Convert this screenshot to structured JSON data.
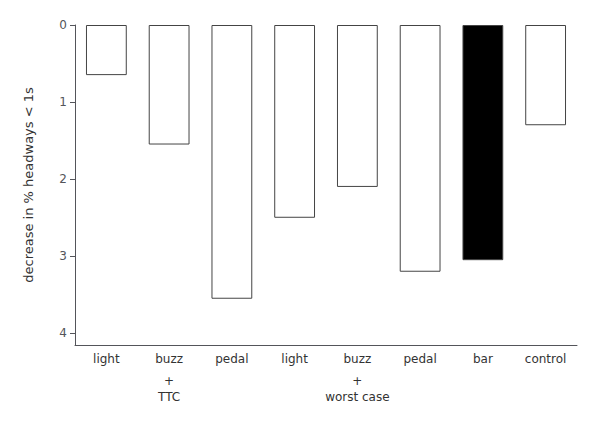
{
  "chart_data": {
    "type": "bar",
    "categories": [
      "light",
      "buzz",
      "pedal",
      "light",
      "buzz",
      "pedal",
      "bar",
      "control"
    ],
    "values": [
      0.65,
      1.55,
      3.55,
      2.5,
      2.1,
      3.2,
      3.05,
      1.3
    ],
    "colors": [
      "white",
      "white",
      "white",
      "white",
      "white",
      "white",
      "black",
      "white"
    ],
    "ylabel": "decrease in % headways < 1s",
    "ylim": [
      4.15,
      0
    ],
    "yticks": [
      0,
      1,
      2,
      3,
      4
    ],
    "grid": false,
    "annotations": [
      {
        "text": "+\nTTC",
        "category": 1
      },
      {
        "text": "+\nworst case",
        "category": 4
      }
    ]
  }
}
